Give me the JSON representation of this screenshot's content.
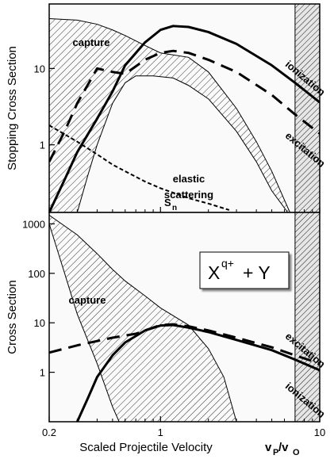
{
  "chart_data": [
    {
      "type": "line",
      "ylabel": "Stopping Cross Section",
      "xlim": [
        0.2,
        10
      ],
      "ylim": [
        0.13,
        70
      ],
      "log_x": true,
      "log_y": true,
      "xticks": [
        0.2,
        1,
        10
      ],
      "xminorticks": [
        0.3,
        0.4,
        0.5,
        0.6,
        0.7,
        0.8,
        0.9,
        2,
        3,
        4,
        5,
        6,
        7,
        8,
        9
      ],
      "yticks": [
        1,
        10
      ],
      "shaded_region": [
        7,
        10
      ],
      "series": [
        {
          "style": "solid",
          "color": "#000000",
          "x": [
            0.2,
            0.25,
            0.3,
            0.4,
            0.5,
            0.6,
            0.8,
            1,
            1.2,
            1.5,
            2,
            3,
            5,
            7,
            10
          ],
          "values": [
            0.13,
            0.35,
            0.8,
            2.2,
            5,
            11,
            22,
            32,
            36,
            35,
            30,
            21,
            11,
            6.5,
            3.6
          ]
        },
        {
          "style": "dashed",
          "color": "#000000",
          "x": [
            0.2,
            0.25,
            0.3,
            0.4,
            0.5,
            0.6,
            0.8,
            1,
            1.2,
            1.5,
            2,
            3,
            5,
            7,
            10
          ],
          "values": [
            0.6,
            1.5,
            3.5,
            10,
            9,
            8.5,
            13,
            16,
            17,
            16,
            13,
            9,
            4.5,
            2.5,
            1.4
          ]
        },
        {
          "style": "dotted",
          "color": "#000000",
          "x": [
            0.2,
            0.3,
            0.4,
            0.5,
            0.6,
            0.8,
            1,
            1.5,
            2,
            2.7
          ],
          "values": [
            1.8,
            1.1,
            0.75,
            0.55,
            0.45,
            0.33,
            0.27,
            0.2,
            0.17,
            0.14
          ]
        }
      ],
      "area": {
        "upper": {
          "x": [
            0.2,
            0.3,
            0.4,
            0.5,
            0.6,
            0.8,
            1,
            1.5,
            2,
            3,
            4,
            5,
            6.5
          ],
          "values": [
            45,
            43,
            38,
            32,
            27,
            20,
            16,
            14,
            9,
            3,
            1.1,
            0.45,
            0.13
          ]
        },
        "lower": {
          "x": [
            0.3,
            0.35,
            0.4,
            0.5,
            0.6,
            0.7,
            0.9,
            1.2,
            1.5,
            2,
            3,
            4,
            5,
            6.3
          ],
          "values": [
            0.13,
            0.4,
            1,
            3.5,
            6.5,
            8,
            8,
            7.5,
            6,
            4,
            1.5,
            0.6,
            0.25,
            0.13
          ]
        }
      },
      "annotations": [
        "capture",
        "elastic",
        "scattering",
        "S",
        "n",
        "ionization",
        "excitation"
      ]
    },
    {
      "type": "line",
      "ylabel": "Cross Section",
      "xlabel": "Scaled Projectile Velocity",
      "xlabel_unit": [
        "v",
        "P",
        "/v",
        "O"
      ],
      "xlim": [
        0.2,
        10
      ],
      "ylim": [
        0.1,
        1700
      ],
      "log_x": true,
      "log_y": true,
      "xticks": [
        0.2,
        1,
        10
      ],
      "xminorticks": [
        0.3,
        0.4,
        0.5,
        0.6,
        0.7,
        0.8,
        0.9,
        2,
        3,
        4,
        5,
        6,
        7,
        8,
        9
      ],
      "yticks": [
        1,
        10,
        100,
        1000
      ],
      "shaded_region": [
        7,
        10
      ],
      "series": [
        {
          "style": "solid",
          "color": "#000000",
          "x": [
            0.3,
            0.35,
            0.4,
            0.5,
            0.6,
            0.8,
            1,
            1.2,
            1.5,
            2,
            3,
            5,
            7,
            10
          ],
          "values": [
            0.1,
            0.3,
            0.8,
            2.2,
            4,
            7,
            8.8,
            9,
            8,
            6.5,
            4.5,
            2.8,
            1.8,
            1.1
          ]
        },
        {
          "style": "dashed",
          "color": "#000000",
          "x": [
            0.2,
            0.3,
            0.5,
            0.7,
            0.8,
            1,
            1.2,
            1.5,
            2,
            3,
            5,
            7,
            10
          ],
          "values": [
            2.5,
            3.5,
            5,
            6,
            7,
            9,
            9.3,
            8.5,
            7,
            5,
            3.2,
            2.2,
            1.5
          ]
        }
      ],
      "area": {
        "upper": {
          "x": [
            0.2,
            0.3,
            0.4,
            0.5,
            0.6,
            0.8,
            1,
            1.5,
            2,
            2.5,
            3
          ],
          "values": [
            1500,
            600,
            250,
            120,
            70,
            35,
            20,
            9,
            3,
            0.8,
            0.1
          ]
        },
        "lower": {
          "x": [
            0.2,
            0.25,
            0.3,
            0.4,
            0.5,
            0.55
          ],
          "values": [
            1000,
            100,
            15,
            1.5,
            0.2,
            0.1
          ]
        }
      },
      "annotations": [
        "capture",
        "excitation",
        "ionization"
      ],
      "box_label": [
        "X",
        "q+",
        "+ Y"
      ]
    }
  ]
}
